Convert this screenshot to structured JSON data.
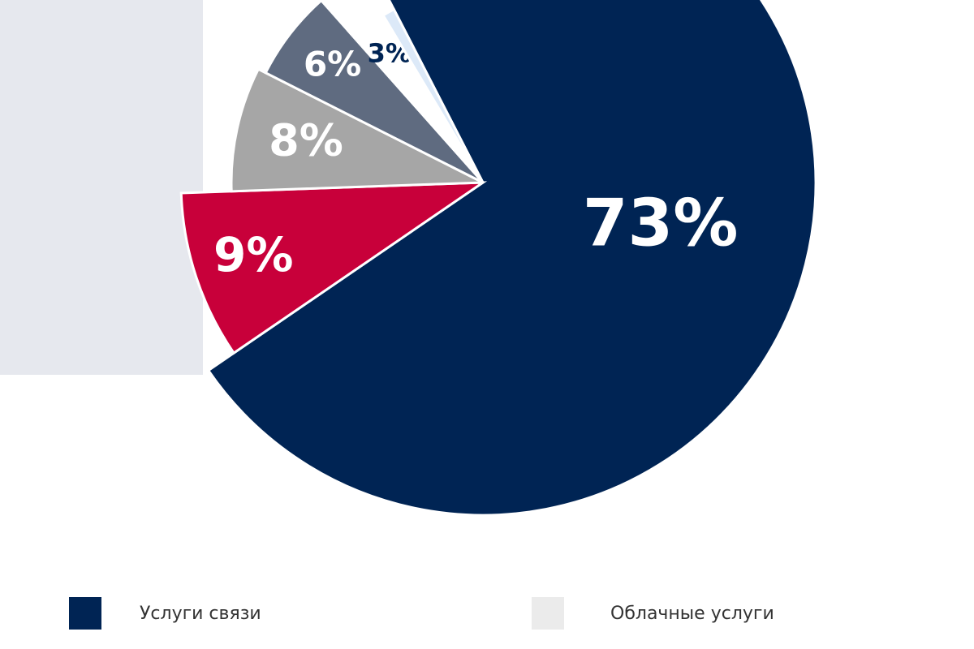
{
  "chart_data": {
    "type": "pie",
    "values": [
      73,
      9,
      8,
      6,
      3,
      1
    ],
    "value_labels": [
      "73%",
      "9%",
      "8%",
      "6%",
      "3%",
      null
    ],
    "colors": [
      "#002454",
      "#c8003a",
      "#a6a6a6",
      "#5f6b80",
      "#ffffff",
      "#dce9f8"
    ],
    "label_colors": [
      "#ffffff",
      "#ffffff",
      "#ffffff",
      "#ffffff",
      "#002454",
      "#002454"
    ],
    "legend": [
      {
        "name": "Услуги связи",
        "color": "#002454"
      },
      {
        "name": "Облачные услуги",
        "color": "#ebebeb"
      }
    ]
  }
}
